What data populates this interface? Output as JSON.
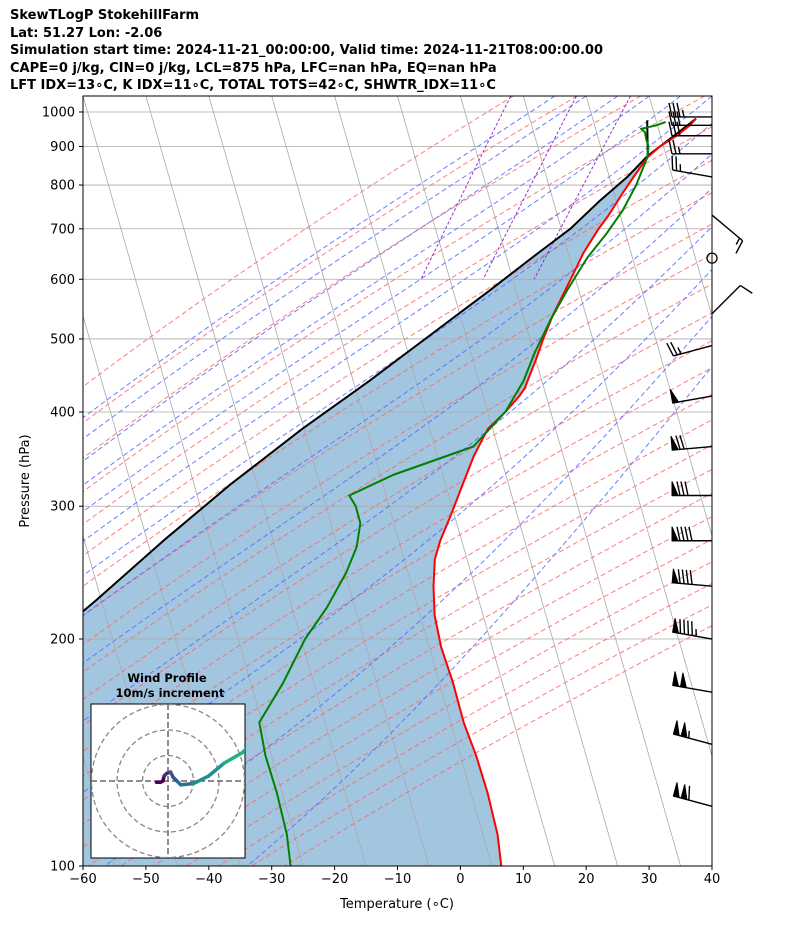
{
  "header": {
    "line1": "SkewTLogP StokehillFarm",
    "line2": "Lat: 51.27   Lon: -2.06",
    "line3": "Simulation start time: 2024-11-21_00:00:00, Valid time: 2024-11-21T08:00:00.00",
    "line4": "CAPE=0 j/kg, CIN=0 j/kg, LCL=875 hPa, LFC=nan hPa, EQ=nan hPa",
    "line5": "LFT IDX=13∘C, K IDX=11∘C, TOTAL TOTS=42∘C, SHWTR_IDX=11∘C"
  },
  "chart_data": [
    {
      "type": "line",
      "subtype": "skew-t log-p",
      "xlabel": "Temperature (∘C)",
      "ylabel": "Pressure (hPa)",
      "xlim": [
        -60,
        40
      ],
      "ylim": [
        1050,
        100
      ],
      "y_scale": "log",
      "x_ticks": [
        -60,
        -50,
        -40,
        -30,
        -20,
        -10,
        0,
        10,
        20,
        30,
        40
      ],
      "x_tick_labels": [
        "−60",
        "−50",
        "−40",
        "−30",
        "−20",
        "−10",
        "0",
        "10",
        "20",
        "30",
        "40"
      ],
      "y_ticks": [
        1000,
        900,
        800,
        700,
        600,
        500,
        400,
        300,
        200,
        100
      ],
      "y_tick_labels": [
        "1000",
        "900",
        "800",
        "700",
        "600",
        "500",
        "400",
        "300",
        "200",
        "100"
      ],
      "grid": true,
      "series": [
        {
          "role": "temperature",
          "color": "#ff0000",
          "points": [
            [
              3.5,
              980
            ],
            [
              2.8,
              960
            ],
            [
              1.2,
              930
            ],
            [
              -1.0,
              900
            ],
            [
              -2.5,
              870
            ],
            [
              -3.8,
              820
            ],
            [
              -4.8,
              780
            ],
            [
              -6.0,
              730
            ],
            [
              -7.0,
              700
            ],
            [
              -8.3,
              650
            ],
            [
              -8.8,
              620
            ],
            [
              -9.5,
              580
            ],
            [
              -10.3,
              540
            ],
            [
              -10.8,
              500
            ],
            [
              -11.0,
              470
            ],
            [
              -11.5,
              430
            ],
            [
              -12.0,
              420
            ],
            [
              -13.5,
              400
            ],
            [
              -15.5,
              380
            ],
            [
              -16.5,
              350
            ],
            [
              -17.0,
              320
            ],
            [
              -17.5,
              290
            ],
            [
              -18.0,
              270
            ],
            [
              -18.0,
              255
            ],
            [
              -17.0,
              235
            ],
            [
              -15.5,
              215
            ],
            [
              -13.0,
              195
            ],
            [
              -9.5,
              175
            ],
            [
              -6.0,
              155
            ],
            [
              -2.5,
              140
            ],
            [
              1.0,
              125
            ],
            [
              4.5,
              110
            ],
            [
              6.5,
              100
            ]
          ]
        },
        {
          "role": "dewpoint",
          "color": "#008000",
          "points": [
            [
              -1.2,
              970
            ],
            [
              -2.5,
              960
            ],
            [
              -4.8,
              950
            ],
            [
              -4.0,
              940
            ],
            [
              -3.5,
              920
            ],
            [
              -2.8,
              900
            ],
            [
              -2.5,
              870
            ],
            [
              -3.0,
              800
            ],
            [
              -4.0,
              740
            ],
            [
              -5.5,
              690
            ],
            [
              -7.5,
              640
            ],
            [
              -9.2,
              580
            ],
            [
              -10.5,
              530
            ],
            [
              -11.5,
              480
            ],
            [
              -12.0,
              440
            ],
            [
              -13.5,
              400
            ],
            [
              -17.0,
              360
            ],
            [
              -28.5,
              330
            ],
            [
              -34.5,
              310
            ],
            [
              -33.0,
              300
            ],
            [
              -31.5,
              285
            ],
            [
              -31.0,
              265
            ],
            [
              -31.5,
              245
            ],
            [
              -33.0,
              220
            ],
            [
              -35.0,
              200
            ],
            [
              -36.5,
              175
            ],
            [
              -38.5,
              155
            ],
            [
              -36.0,
              140
            ],
            [
              -32.5,
              125
            ],
            [
              -29.0,
              110
            ],
            [
              -27.0,
              100
            ]
          ]
        },
        {
          "role": "parcel",
          "color": "#000000",
          "points": [
            [
              3.5,
              980
            ],
            [
              0.8,
              930
            ],
            [
              -2.5,
              875
            ],
            [
              -4.8,
              820
            ],
            [
              -8.2,
              760
            ],
            [
              -11.5,
              700
            ],
            [
              -15.5,
              650
            ],
            [
              -21.5,
              580
            ],
            [
              -28.5,
              510
            ],
            [
              -36.5,
              440
            ],
            [
              -45.0,
              380
            ],
            [
              -54.0,
              320
            ],
            [
              -62.0,
              270
            ],
            [
              -70.0,
              225
            ],
            [
              -78.0,
              190
            ],
            [
              -86.0,
              160
            ],
            [
              -94.0,
              135
            ],
            [
              -102.0,
              115
            ],
            [
              -108.0,
              100
            ]
          ]
        },
        {
          "role": "lcl-dry-adiabat",
          "color": "#000000",
          "points": [
            [
              -4.2,
              975
            ],
            [
              -2.5,
              875
            ]
          ]
        }
      ]
    },
    {
      "type": "line",
      "subtype": "hodograph",
      "title": "Wind Profile",
      "subtitle": "10m/s increment",
      "rings_ms": [
        10,
        20,
        30
      ],
      "wind_points_ms": [
        [
          -4.5,
          -0.5
        ],
        [
          -3.0,
          -0.5
        ],
        [
          -2.0,
          0.0
        ],
        [
          -1.5,
          2.0
        ],
        [
          -0.5,
          3.0
        ],
        [
          1.0,
          3.5
        ],
        [
          2.0,
          1.5
        ],
        [
          4.0,
          -0.5
        ],
        [
          5.0,
          -1.5
        ],
        [
          10.0,
          -1.0
        ],
        [
          16.0,
          2.0
        ],
        [
          22.0,
          7.0
        ],
        [
          29.0,
          11.0
        ],
        [
          34.0,
          16.0
        ]
      ]
    }
  ],
  "wind_barbs": [
    {
      "p": 120,
      "dir": 285,
      "kt": 110
    },
    {
      "p": 145,
      "dir": 285,
      "kt": 105
    },
    {
      "p": 170,
      "dir": 280,
      "kt": 100
    },
    {
      "p": 200,
      "dir": 280,
      "kt": 95
    },
    {
      "p": 235,
      "dir": 275,
      "kt": 90
    },
    {
      "p": 270,
      "dir": 270,
      "kt": 88
    },
    {
      "p": 310,
      "dir": 270,
      "kt": 80
    },
    {
      "p": 360,
      "dir": 265,
      "kt": 70
    },
    {
      "p": 420,
      "dir": 260,
      "kt": 50
    },
    {
      "p": 490,
      "dir": 255,
      "kt": 25
    },
    {
      "p": 540,
      "dir": 45,
      "kt": 10
    },
    {
      "p": 640,
      "dir": 0,
      "kt": 0
    },
    {
      "p": 730,
      "dir": 130,
      "kt": 15
    },
    {
      "p": 820,
      "dir": 280,
      "kt": 25
    },
    {
      "p": 880,
      "dir": 270,
      "kt": 25
    },
    {
      "p": 930,
      "dir": 270,
      "kt": 30
    },
    {
      "p": 960,
      "dir": 270,
      "kt": 30
    },
    {
      "p": 985,
      "dir": 270,
      "kt": 35
    }
  ],
  "colors": {
    "cape_fill": "#a2c6e0",
    "isotherm": "#aaaaaa",
    "dry_adiabat": "#ff6666",
    "moist_adiabat": "#5566ff",
    "mixing_ratio": "#8c1cc8",
    "hodograph_ring": "#888888"
  }
}
